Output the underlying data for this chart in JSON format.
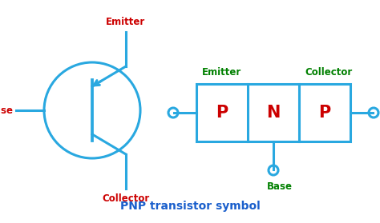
{
  "bg_color": "#ffffff",
  "cyan": "#29a8e0",
  "red": "#cc0000",
  "green": "#008000",
  "title": "PNP transistor symbol",
  "title_color": "#1a5fcc",
  "title_fontsize": 10,
  "label_fontsize": 8.5,
  "pnp_letters": [
    "P",
    "N",
    "P"
  ],
  "pnp_letter_color": "#cc0000",
  "pnp_letter_fontsize": 15
}
